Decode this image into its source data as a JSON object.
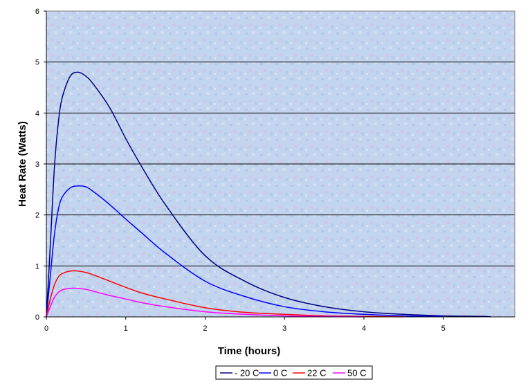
{
  "chart_data": {
    "type": "line",
    "xlabel": "Time (hours)",
    "ylabel": "Heat Rate (Watts)",
    "xlim": [
      0,
      5.9
    ],
    "ylim": [
      0,
      6
    ],
    "xticks": [
      "0",
      "1",
      "2",
      "3",
      "4",
      "5"
    ],
    "yticks": [
      "0",
      "1",
      "2",
      "3",
      "4",
      "5",
      "6"
    ],
    "grid": "horizontal",
    "legend_position": "bottom",
    "series": [
      {
        "name": "- 20 C",
        "color": "#000080",
        "x": [
          0,
          0.05,
          0.1,
          0.15,
          0.2,
          0.3,
          0.4,
          0.5,
          0.6,
          0.8,
          1.0,
          1.2,
          1.5,
          2.0,
          2.5,
          3.0,
          3.5,
          4.0,
          4.5,
          5.0,
          5.5,
          5.6
        ],
        "y": [
          0,
          1.4,
          2.9,
          3.8,
          4.3,
          4.72,
          4.8,
          4.72,
          4.55,
          4.1,
          3.5,
          2.95,
          2.2,
          1.2,
          0.7,
          0.38,
          0.2,
          0.1,
          0.05,
          0.02,
          0.01,
          0.0
        ]
      },
      {
        "name": "0 C",
        "color": "#0000ff",
        "x": [
          0,
          0.05,
          0.1,
          0.15,
          0.2,
          0.3,
          0.4,
          0.5,
          0.6,
          0.8,
          1.0,
          1.2,
          1.5,
          2.0,
          2.5,
          3.0,
          3.5,
          4.0,
          4.5,
          5.0
        ],
        "y": [
          0,
          0.8,
          1.6,
          2.1,
          2.35,
          2.53,
          2.57,
          2.55,
          2.45,
          2.2,
          1.92,
          1.65,
          1.25,
          0.7,
          0.4,
          0.2,
          0.1,
          0.05,
          0.02,
          0.01
        ]
      },
      {
        "name": "22 C",
        "color": "#ff0000",
        "x": [
          0,
          0.05,
          0.1,
          0.15,
          0.2,
          0.3,
          0.4,
          0.5,
          0.6,
          0.8,
          1.0,
          1.2,
          1.5,
          2.0,
          2.5,
          3.0,
          3.5,
          4.0,
          4.5
        ],
        "y": [
          0,
          0.35,
          0.62,
          0.78,
          0.85,
          0.9,
          0.9,
          0.87,
          0.82,
          0.7,
          0.58,
          0.47,
          0.35,
          0.18,
          0.09,
          0.05,
          0.02,
          0.01,
          0.0
        ]
      },
      {
        "name": "50 C",
        "color": "#ff00ff",
        "x": [
          0,
          0.05,
          0.1,
          0.15,
          0.2,
          0.3,
          0.4,
          0.5,
          0.6,
          0.8,
          1.0,
          1.2,
          1.5,
          2.0,
          2.5,
          3.0,
          3.5,
          4.0
        ],
        "y": [
          0,
          0.2,
          0.38,
          0.48,
          0.53,
          0.56,
          0.56,
          0.54,
          0.5,
          0.42,
          0.35,
          0.28,
          0.2,
          0.1,
          0.05,
          0.02,
          0.01,
          0.0
        ]
      }
    ]
  }
}
